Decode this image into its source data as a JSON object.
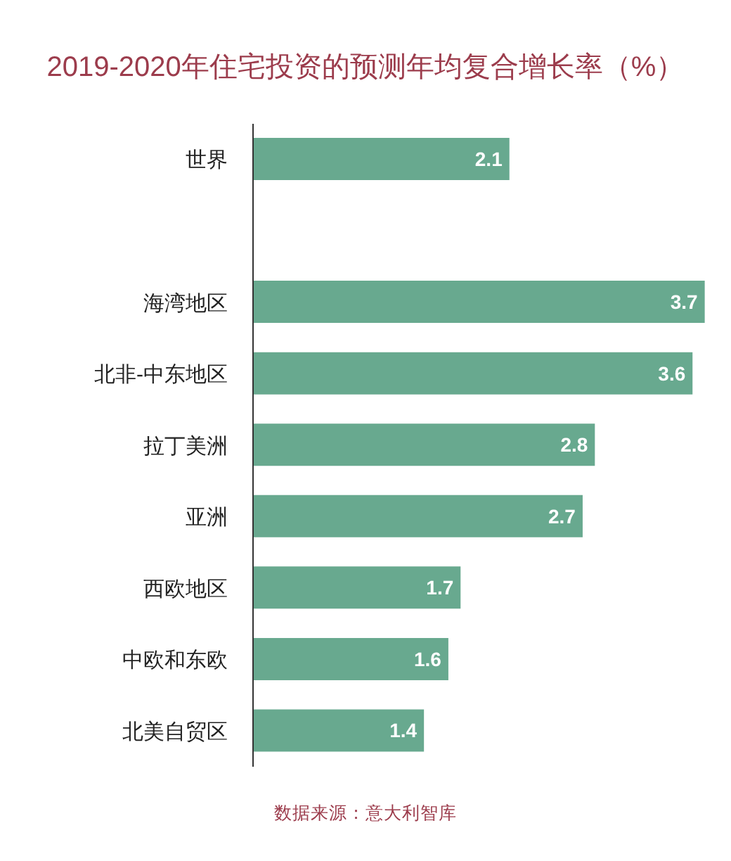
{
  "chart_data": {
    "type": "bar",
    "orientation": "horizontal",
    "title": "2019-2020年住宅投资的预测年均复合增长率（%）",
    "categories": [
      "世界",
      null,
      "海湾地区",
      "北非-中东地区",
      "拉丁美洲",
      "亚洲",
      "西欧地区",
      "中欧和东欧",
      "北美自贸区"
    ],
    "values": [
      2.1,
      null,
      3.7,
      3.6,
      2.8,
      2.7,
      1.7,
      1.6,
      1.4
    ],
    "color": "#68a98f",
    "data_labels": true,
    "tick_labels": "y",
    "annotations": [
      "数据来源：意大利智库"
    ]
  }
}
